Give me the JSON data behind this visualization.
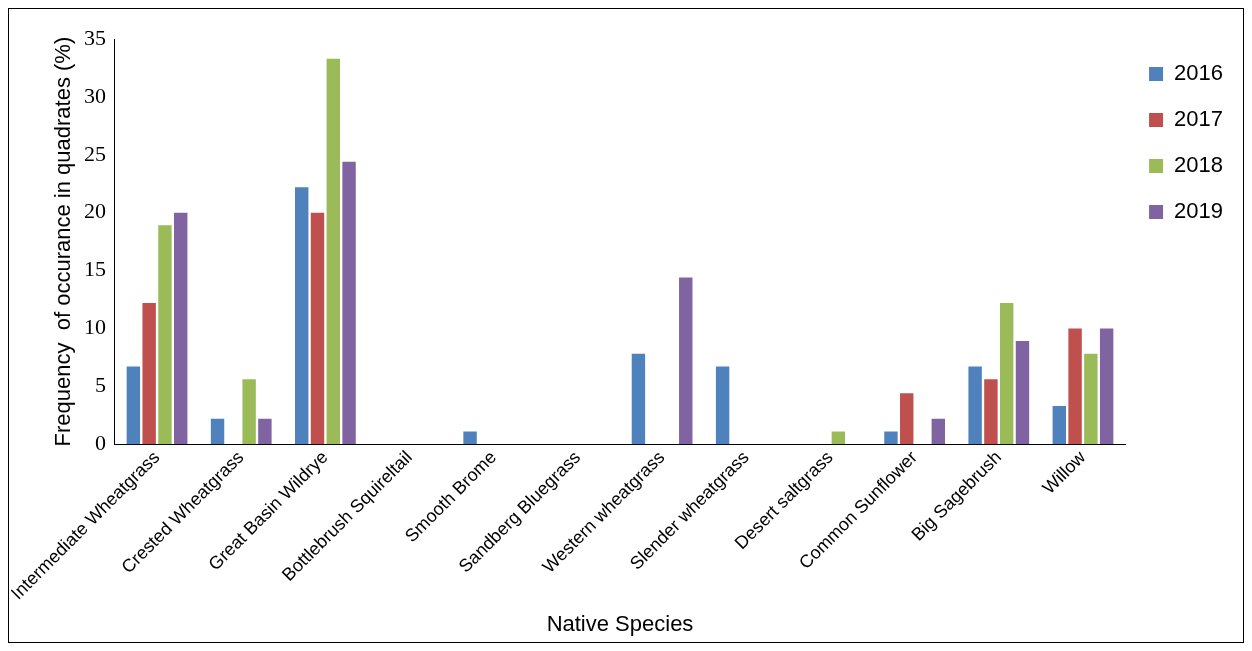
{
  "chart_data": {
    "type": "bar",
    "xlabel": "Native Species",
    "ylabel": "Frequency  of occurance in quadrates (%)",
    "categories": [
      "Intermediate Wheatgrass",
      "Crested Wheatgrass",
      "Great Basin Wildrye",
      "Bottlebrush Squireltail",
      "Smooth Brome",
      "Sandberg Bluegrass",
      "Western wheatgrass",
      "Slender wheatgrass",
      "Desert saltgrass",
      "Common Sunflower",
      "Big Sagebrush",
      "Willow"
    ],
    "series": [
      {
        "name": "2016",
        "color": "#4f81bd",
        "values": [
          6.7,
          2.2,
          22.2,
          0,
          1.1,
          0,
          7.8,
          6.7,
          0,
          1.1,
          6.7,
          3.3
        ]
      },
      {
        "name": "2017",
        "color": "#c0504d",
        "values": [
          12.2,
          0,
          20,
          0,
          0,
          0,
          0,
          0,
          0,
          4.4,
          5.6,
          10
        ]
      },
      {
        "name": "2018",
        "color": "#9bbb59",
        "values": [
          18.9,
          5.6,
          33.3,
          0,
          0,
          0,
          0,
          0,
          1.1,
          0,
          12.2,
          7.8
        ]
      },
      {
        "name": "2019",
        "color": "#8064a2",
        "values": [
          20,
          2.2,
          24.4,
          0,
          0,
          0,
          14.4,
          0,
          0,
          2.2,
          8.9,
          10
        ]
      }
    ],
    "ylim": [
      0,
      35
    ],
    "yticks": [
      0,
      5,
      10,
      15,
      20,
      25,
      30,
      35
    ],
    "grid": false,
    "legend": "top right"
  }
}
